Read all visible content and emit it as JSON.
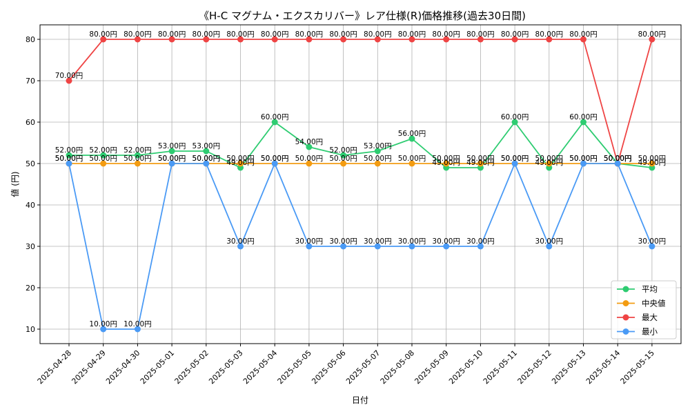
{
  "chart_data": {
    "type": "line",
    "title": "《H-C マグナム・エクスカリバー》レア仕様(R)価格推移(過去30日間)",
    "xlabel": "日付",
    "ylabel": "値 (円)",
    "value_suffix": "円",
    "ylim": [
      6.5,
      83.5
    ],
    "yticks": [
      10,
      20,
      30,
      40,
      50,
      60,
      70,
      80
    ],
    "grid": true,
    "legend_position": "lower-right",
    "categories": [
      "2025-04-28",
      "2025-04-29",
      "2025-04-30",
      "2025-05-01",
      "2025-05-02",
      "2025-05-03",
      "2025-05-04",
      "2025-05-05",
      "2025-05-06",
      "2025-05-07",
      "2025-05-08",
      "2025-05-09",
      "2025-05-10",
      "2025-05-11",
      "2025-05-12",
      "2025-05-13",
      "2025-05-14",
      "2025-05-15"
    ],
    "series": [
      {
        "name": "平均",
        "color": "#2ecc71",
        "values": [
          52,
          52,
          52,
          53,
          53,
          49,
          60,
          54,
          52,
          53,
          56,
          49,
          49,
          60,
          49,
          60,
          50,
          49
        ]
      },
      {
        "name": "中央値",
        "color": "#f39c12",
        "values": [
          50,
          50,
          50,
          50,
          50,
          50,
          50,
          50,
          50,
          50,
          50,
          50,
          50,
          50,
          50,
          50,
          50,
          50
        ]
      },
      {
        "name": "最大",
        "color": "#ef4444",
        "values": [
          70,
          80,
          80,
          80,
          80,
          80,
          80,
          80,
          80,
          80,
          80,
          80,
          80,
          80,
          80,
          80,
          50,
          80
        ]
      },
      {
        "name": "最小",
        "color": "#4a9af5",
        "values": [
          50,
          10,
          10,
          50,
          50,
          30,
          50,
          30,
          30,
          30,
          30,
          30,
          30,
          50,
          30,
          50,
          50,
          30
        ]
      }
    ]
  }
}
